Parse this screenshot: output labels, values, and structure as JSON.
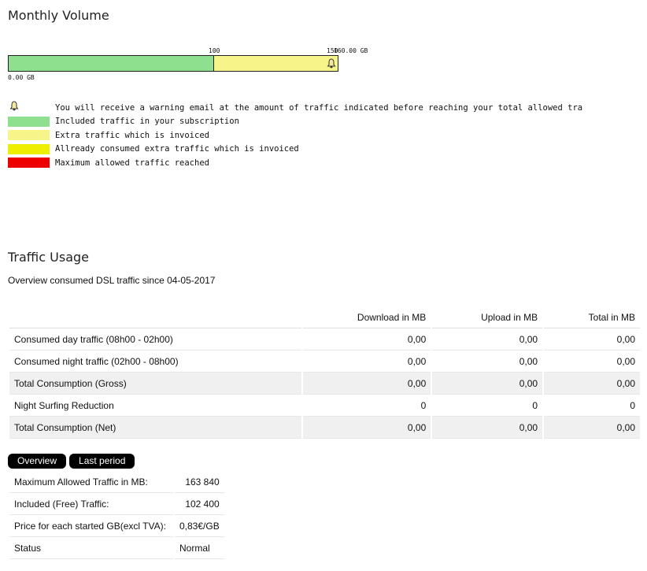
{
  "monthly_volume": {
    "title": "Monthly Volume",
    "bar": {
      "tick_start": "0.00 GB",
      "tick_mid": "100",
      "tick_end": "150",
      "tick_end_overlap": "160.00 GB",
      "included_fraction": 0.625,
      "extra_fraction": 0.375,
      "colors": {
        "included": "#8ee08e",
        "extra": "#f7f58a"
      }
    },
    "legend": [
      {
        "icon": "bell-icon",
        "text": "You will  receive a warning email at the amount of traffic indicated before reaching your total allowed tra"
      },
      {
        "color": "#8ee08e",
        "text": "Included traffic in your subscription"
      },
      {
        "color": "#f7f58a",
        "text": "Extra traffic which is invoiced"
      },
      {
        "color": "#eeee00",
        "text": "Allready consumed extra traffic which is invoiced"
      },
      {
        "color": "#ee0000",
        "text": "Maximum allowed traffic reached"
      }
    ]
  },
  "traffic_usage": {
    "title": "Traffic Usage",
    "since_text": "Overview consumed DSL traffic since  04-05-2017",
    "columns": [
      "",
      "Download in MB",
      "Upload in MB",
      "Total in MB"
    ],
    "rows": [
      {
        "label": "Consumed day traffic (08h00 - 02h00)",
        "download": "0,00",
        "upload": "0,00",
        "total": "0,00",
        "shaded": false
      },
      {
        "label": "Consumed night traffic (02h00 - 08h00)",
        "download": "0,00",
        "upload": "0,00",
        "total": "0,00",
        "shaded": false
      },
      {
        "label": "Total Consumption (Gross)",
        "download": "0,00",
        "upload": "0,00",
        "total": "0,00",
        "shaded": true
      },
      {
        "label": "Night Surfing Reduction",
        "download": "0",
        "upload": "0",
        "total": "0",
        "shaded": false
      },
      {
        "label": "Total Consumption (Net)",
        "download": "0,00",
        "upload": "0,00",
        "total": "0,00",
        "shaded": true
      }
    ]
  },
  "tabs": [
    "Overview",
    "Last period"
  ],
  "summary": [
    {
      "label": "Maximum Allowed Traffic in MB:",
      "value": "163 840"
    },
    {
      "label": "Included (Free) Traffic:",
      "value": "102 400"
    },
    {
      "label": "Price for each started GB(excl TVA):",
      "value": "0,83€/GB"
    },
    {
      "label": "Status",
      "value": "Normal"
    }
  ]
}
